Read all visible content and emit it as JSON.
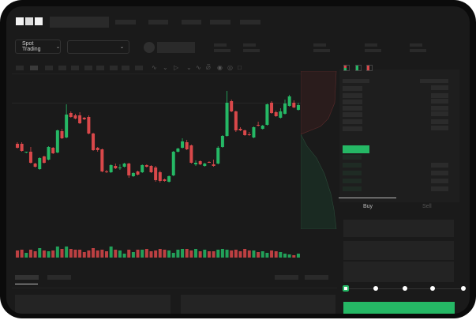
{
  "header": {
    "logo": "OKX",
    "mode_selector": {
      "label": "Spot Trading",
      "icon": "chevron-down-icon"
    },
    "pair_selector": {
      "icon": "chevron-down-icon"
    }
  },
  "trade_panel": {
    "tabs": [
      {
        "label": "Buy",
        "active": true
      },
      {
        "label": "Sell",
        "active": false
      }
    ],
    "slider_percent": 0,
    "slider_marks": 5
  },
  "colors": {
    "up": "#25b865",
    "down": "#d9484a",
    "background": "#1a1a1a",
    "placeholder": "#2a2a2a"
  },
  "chart_data": {
    "type": "candlestick",
    "candles": [
      [
        68,
        70,
        62,
        63
      ],
      [
        68,
        70,
        58,
        59
      ],
      [
        57,
        58,
        56,
        58
      ],
      [
        58,
        64,
        43,
        44
      ],
      [
        43,
        44,
        38,
        39
      ],
      [
        36,
        51,
        35,
        50
      ],
      [
        52,
        53,
        43,
        44
      ],
      [
        48,
        65,
        47,
        64
      ],
      [
        63,
        64,
        55,
        56
      ],
      [
        57,
        86,
        56,
        85
      ],
      [
        84,
        87,
        74,
        75
      ],
      [
        76,
        118,
        75,
        105
      ],
      [
        107,
        109,
        101,
        102
      ],
      [
        104,
        106,
        99,
        100
      ],
      [
        104,
        108,
        93,
        94
      ],
      [
        101,
        102,
        98,
        99
      ],
      [
        102,
        104,
        80,
        81
      ],
      [
        81,
        82,
        59,
        60
      ],
      [
        63,
        64,
        58,
        60
      ],
      [
        61,
        62,
        32,
        33
      ],
      [
        33,
        35,
        31,
        32
      ],
      [
        32,
        42,
        31,
        41
      ],
      [
        40,
        43,
        36,
        37
      ],
      [
        37,
        42,
        35,
        38
      ],
      [
        39,
        44,
        38,
        43
      ],
      [
        43,
        44,
        25,
        28
      ],
      [
        27,
        32,
        26,
        31
      ],
      [
        33,
        34,
        28,
        29
      ],
      [
        32,
        42,
        31,
        41
      ],
      [
        41,
        42,
        38,
        39
      ],
      [
        40,
        41,
        31,
        32
      ],
      [
        38,
        40,
        20,
        22
      ],
      [
        32,
        34,
        19,
        21
      ],
      [
        23,
        24,
        20,
        21
      ],
      [
        20,
        28,
        19,
        27
      ],
      [
        28,
        59,
        27,
        58
      ],
      [
        58,
        63,
        57,
        62
      ],
      [
        63,
        75,
        62,
        71
      ],
      [
        70,
        73,
        60,
        61
      ],
      [
        66,
        67,
        43,
        44
      ],
      [
        42,
        47,
        40,
        44
      ],
      [
        46,
        47,
        41,
        42
      ],
      [
        40,
        44,
        39,
        43
      ],
      [
        45,
        46,
        44,
        44
      ],
      [
        42,
        48,
        39,
        40
      ],
      [
        43,
        65,
        42,
        63
      ],
      [
        64,
        79,
        63,
        78
      ],
      [
        78,
        135,
        77,
        120
      ],
      [
        122,
        124,
        108,
        109
      ],
      [
        109,
        110,
        83,
        85
      ],
      [
        87,
        89,
        84,
        85
      ],
      [
        85,
        86,
        78,
        79
      ],
      [
        80,
        83,
        78,
        79
      ],
      [
        76,
        90,
        75,
        89
      ],
      [
        92,
        96,
        90,
        91
      ],
      [
        87,
        92,
        86,
        91
      ],
      [
        92,
        119,
        91,
        118
      ],
      [
        120,
        122,
        106,
        107
      ],
      [
        108,
        110,
        102,
        103
      ],
      [
        101,
        113,
        100,
        109
      ],
      [
        106,
        124,
        105,
        119
      ],
      [
        116,
        130,
        115,
        128
      ],
      [
        120,
        123,
        113,
        114
      ],
      [
        111,
        120,
        110,
        117
      ]
    ],
    "volumes": [
      9,
      10,
      6,
      10,
      8,
      12,
      9,
      8,
      9,
      14,
      11,
      14,
      11,
      10,
      10,
      7,
      9,
      12,
      9,
      10,
      8,
      14,
      10,
      9,
      5,
      10,
      7,
      10,
      10,
      11,
      8,
      9,
      11,
      10,
      9,
      6,
      10,
      11,
      11,
      9,
      11,
      8,
      10,
      8,
      8,
      10,
      11,
      10,
      9,
      10,
      8,
      11,
      9,
      9,
      7,
      8,
      6,
      9,
      8,
      7,
      5,
      4,
      3,
      5
    ]
  }
}
